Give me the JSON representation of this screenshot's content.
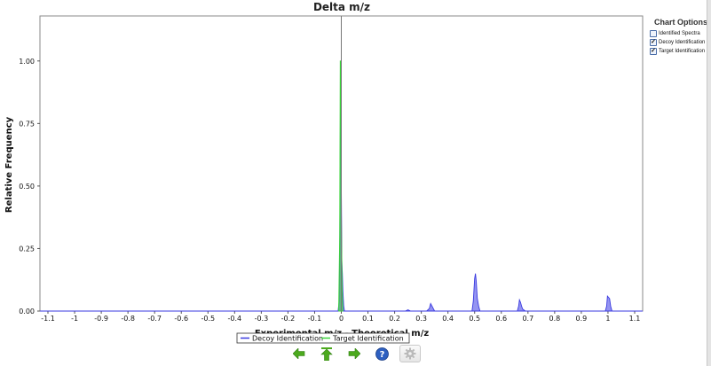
{
  "chart_data": {
    "type": "area",
    "title": "Delta m/z",
    "xlabel": "Experimental m/z - Theoretical m/z",
    "ylabel": "Relative Frequency",
    "xlim": [
      -1.13,
      1.13
    ],
    "ylim": [
      0,
      1.18
    ],
    "x_ticks": [
      "-1.1",
      "-1",
      "-0.9",
      "-0.8",
      "-0.7",
      "-0.6",
      "-0.5",
      "-0.4",
      "-0.3",
      "-0.2",
      "-0.1",
      "0",
      "0.1",
      "0.2",
      "0.3",
      "0.4",
      "0.5",
      "0.6",
      "0.7",
      "0.8",
      "0.9",
      "1",
      "1.1"
    ],
    "y_ticks": [
      "0.00",
      "0.25",
      "0.50",
      "0.75",
      "1.00"
    ],
    "grid": false,
    "legend_position": "bottom",
    "series": [
      {
        "name": "Decoy Identification",
        "color": "#3a3ae0",
        "x": [
          -1.13,
          -0.012,
          -0.008,
          -0.006,
          -0.003,
          -0.001,
          0.0,
          0.002,
          0.004,
          0.006,
          0.009,
          0.012,
          0.24,
          0.25,
          0.26,
          0.32,
          0.33,
          0.335,
          0.34,
          0.345,
          0.35,
          0.49,
          0.495,
          0.5,
          0.503,
          0.506,
          0.51,
          0.515,
          0.52,
          0.66,
          0.665,
          0.668,
          0.672,
          0.676,
          0.68,
          0.69,
          0.99,
          0.995,
          0.998,
          1.002,
          1.006,
          1.01,
          1.015,
          1.13
        ],
        "y": [
          0.0,
          0.0,
          0.04,
          0.22,
          0.83,
          0.83,
          0.5,
          0.2,
          0.15,
          0.08,
          0.02,
          0.0,
          0.0,
          0.005,
          0.0,
          0.0,
          0.01,
          0.03,
          0.02,
          0.01,
          0.0,
          0.0,
          0.04,
          0.13,
          0.15,
          0.12,
          0.05,
          0.02,
          0.0,
          0.0,
          0.02,
          0.045,
          0.035,
          0.02,
          0.008,
          0.0,
          0.0,
          0.02,
          0.06,
          0.055,
          0.05,
          0.02,
          0.0,
          0.0
        ]
      },
      {
        "name": "Target Identification",
        "color": "#3ad43a",
        "x": [
          -0.01,
          -0.006,
          -0.004,
          -0.002,
          0.0,
          0.003,
          0.006
        ],
        "y": [
          0.0,
          0.3,
          1.0,
          1.0,
          0.4,
          0.1,
          0.0
        ]
      }
    ],
    "reference_line_x": 0
  },
  "options": {
    "title": "Chart Options",
    "items": [
      {
        "label": "Identified Spectra",
        "checked": false
      },
      {
        "label": "Decoy Identification",
        "checked": true
      },
      {
        "label": "Target Identification",
        "checked": true
      }
    ]
  },
  "nav": {
    "icons": [
      "back-arrow-icon",
      "up-arrow-icon",
      "forward-arrow-icon",
      "help-icon",
      "settings-gear-icon"
    ]
  }
}
